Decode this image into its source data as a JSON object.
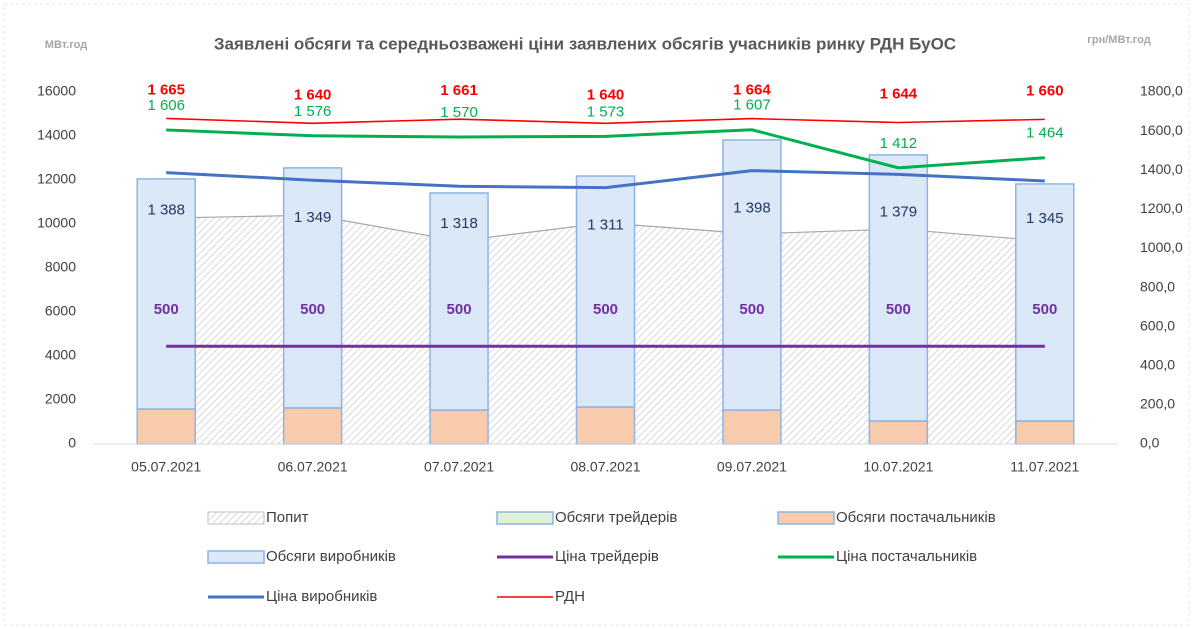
{
  "chart_data": {
    "type": "combo",
    "title": "Заявлені обсяги та середньозважені ціни заявлених обсягів учасників ринку РДН БуОС",
    "y_label": "МВт.год",
    "y2_label": "грн/МВт.год",
    "categories": [
      "05.07.2021",
      "06.07.2021",
      "07.07.2021",
      "08.07.2021",
      "09.07.2021",
      "10.07.2021",
      "11.07.2021"
    ],
    "ylim": [
      0,
      16000
    ],
    "yticks": [
      0,
      2000,
      4000,
      6000,
      8000,
      10000,
      12000,
      14000,
      16000
    ],
    "y2lim": [
      0,
      1800
    ],
    "y2ticks": [
      {
        "value": 0,
        "label": "0,0"
      },
      {
        "value": 200,
        "label": "200,0"
      },
      {
        "value": 400,
        "label": "400,0"
      },
      {
        "value": 600,
        "label": "600,0"
      },
      {
        "value": 800,
        "label": "800,0"
      },
      {
        "value": 1000,
        "label": "1000,0"
      },
      {
        "value": 1200,
        "label": "1200,0"
      },
      {
        "value": 1400,
        "label": "1400,0"
      },
      {
        "value": 1600,
        "label": "1600,0"
      },
      {
        "value": 1800,
        "label": "1800,0"
      }
    ],
    "series": [
      {
        "name": "Попит",
        "kind": "area",
        "color": "#bfbfbf",
        "values": [
          10270,
          10400,
          9230,
          10050,
          9550,
          9770,
          9230
        ]
      },
      {
        "name": "Обсяги трейдерів",
        "kind": "bar",
        "color": "#e2f0d9",
        "values": [
          0,
          0,
          0,
          0,
          0,
          0,
          0
        ]
      },
      {
        "name": "Обсяги постачальників",
        "kind": "bar",
        "color": "#f8cbad",
        "values": [
          1590,
          1640,
          1545,
          1680,
          1545,
          1045,
          1045
        ]
      },
      {
        "name": "Обсяги виробників",
        "kind": "bar",
        "color": "#dae8f8",
        "values": [
          10460,
          10910,
          9865,
          10500,
          12275,
          12095,
          10775
        ]
      },
      {
        "name": "Ціна трейдерів",
        "kind": "line",
        "axis": "y2",
        "color": "#7030a0",
        "values": [
          500,
          500,
          500,
          500,
          500,
          500,
          500
        ]
      },
      {
        "name": "Ціна постачальників",
        "kind": "line",
        "axis": "y2",
        "color": "#00b050",
        "values": [
          1606,
          1576,
          1570,
          1573,
          1607,
          1412,
          1464
        ],
        "value_labels": [
          "1 606",
          "1 576",
          "1 570",
          "1 573",
          "1 607",
          "1 412",
          "1 464"
        ]
      },
      {
        "name": "Ціна виробників",
        "kind": "line",
        "axis": "y2",
        "color": "#4472c4",
        "values": [
          1388,
          1349,
          1318,
          1311,
          1398,
          1379,
          1345
        ],
        "value_labels": [
          "1 388",
          "1 349",
          "1 318",
          "1 311",
          "1 398",
          "1 379",
          "1 345"
        ]
      },
      {
        "name": "РДН",
        "kind": "line",
        "axis": "y2",
        "color": "#ff0000",
        "values": [
          1665,
          1640,
          1661,
          1640,
          1664,
          1644,
          1660
        ],
        "value_labels": [
          "1 665",
          "1 640",
          "1 661",
          "1 640",
          "1 664",
          "1 644",
          "1 660"
        ]
      }
    ]
  }
}
